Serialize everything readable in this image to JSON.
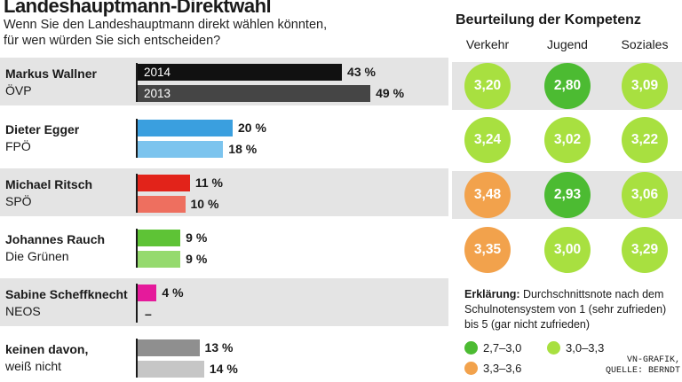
{
  "header": {
    "title": "Landeshauptmann-Direktwahl",
    "subtitle_line1": "Wenn Sie den Landeshauptmann direkt wählen könnten,",
    "subtitle_line2": "für wen würden Sie sich entscheiden?"
  },
  "chart_data": [
    {
      "type": "bar",
      "orientation": "horizontal",
      "year_labels": [
        "2014",
        "2013"
      ],
      "rows": [
        {
          "name": "Markus Wallner",
          "party": "ÖVP",
          "values": [
            43,
            49
          ],
          "labels": [
            "43 %",
            "49 %"
          ],
          "colors": [
            "#111111",
            "#454545"
          ]
        },
        {
          "name": "Dieter Egger",
          "party": "FPÖ",
          "values": [
            20,
            18
          ],
          "labels": [
            "20 %",
            "18 %"
          ],
          "colors": [
            "#3a9fdf",
            "#7cc4ee"
          ]
        },
        {
          "name": "Michael Ritsch",
          "party": "SPÖ",
          "values": [
            11,
            10
          ],
          "labels": [
            "11 %",
            "10 %"
          ],
          "colors": [
            "#e2231a",
            "#ee6f5f"
          ]
        },
        {
          "name": "Johannes Rauch",
          "party": "Die Grünen",
          "values": [
            9,
            9
          ],
          "labels": [
            "9 %",
            "9 %"
          ],
          "colors": [
            "#5ec336",
            "#95da6e"
          ]
        },
        {
          "name": "Sabine Scheffknecht",
          "party": "NEOS",
          "values": [
            4,
            0
          ],
          "labels": [
            "4 %",
            "–"
          ],
          "colors": [
            "#e51a9b",
            "#e51a9b"
          ]
        },
        {
          "name": "keinen davon,",
          "party": "weiß nicht",
          "values": [
            13,
            14
          ],
          "labels": [
            "13 %",
            "14 %"
          ],
          "colors": [
            "#8f8f8f",
            "#c6c6c6"
          ]
        }
      ]
    },
    {
      "type": "table",
      "title": "Beurteilung der Kompetenz",
      "columns": [
        "Verkehr",
        "Jugend",
        "Soziales"
      ],
      "rows": [
        [
          "3,20",
          "2,80",
          "3,09"
        ],
        [
          "3,24",
          "3,02",
          "3,22"
        ],
        [
          "3,48",
          "2,93",
          "3,06"
        ],
        [
          "3,35",
          "3,00",
          "3,29"
        ]
      ],
      "values": [
        [
          3.2,
          2.8,
          3.09
        ],
        [
          3.24,
          3.02,
          3.22
        ],
        [
          3.48,
          2.93,
          3.06
        ],
        [
          3.35,
          3.0,
          3.29
        ]
      ]
    }
  ],
  "legend": {
    "title": "Erklärung:",
    "text": "Durchschnittsnote nach dem Schulnotensystem von 1 (sehr zufrieden) bis 5 (gar nicht zufrieden)",
    "items": [
      {
        "label": "2,7–3,0",
        "color": "#4cbb32"
      },
      {
        "label": "3,0–3,3",
        "color": "#a8e040"
      },
      {
        "label": "3,3–3,6",
        "color": "#f2a24c"
      }
    ]
  },
  "source": {
    "line1": "VN-GRAFIK,",
    "line2": "QUELLE: BERNDT"
  }
}
